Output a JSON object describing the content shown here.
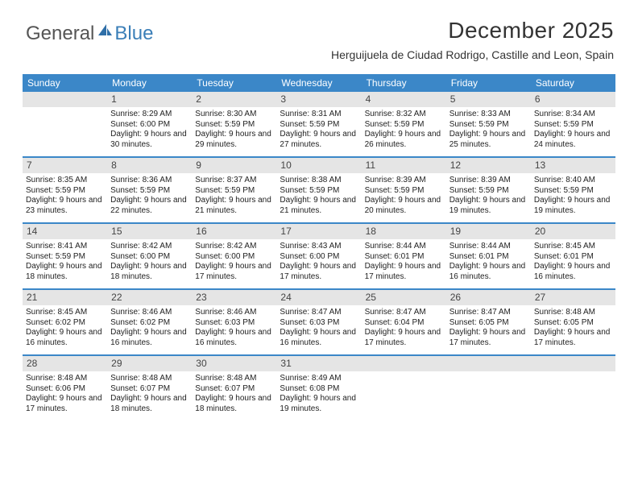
{
  "logo": {
    "text1": "General",
    "text2": "Blue"
  },
  "title": "December 2025",
  "location": "Herguijuela de Ciudad Rodrigo, Castille and Leon, Spain",
  "colors": {
    "header_bg": "#3b87c8",
    "header_text": "#ffffff",
    "daynum_bg": "#e5e5e5",
    "row_border": "#3b87c8",
    "body_text": "#222222"
  },
  "day_labels": [
    "Sunday",
    "Monday",
    "Tuesday",
    "Wednesday",
    "Thursday",
    "Friday",
    "Saturday"
  ],
  "first_weekday": 1,
  "days": [
    {
      "n": 1,
      "sr": "8:29 AM",
      "ss": "6:00 PM",
      "dl": "9 hours and 30 minutes."
    },
    {
      "n": 2,
      "sr": "8:30 AM",
      "ss": "5:59 PM",
      "dl": "9 hours and 29 minutes."
    },
    {
      "n": 3,
      "sr": "8:31 AM",
      "ss": "5:59 PM",
      "dl": "9 hours and 27 minutes."
    },
    {
      "n": 4,
      "sr": "8:32 AM",
      "ss": "5:59 PM",
      "dl": "9 hours and 26 minutes."
    },
    {
      "n": 5,
      "sr": "8:33 AM",
      "ss": "5:59 PM",
      "dl": "9 hours and 25 minutes."
    },
    {
      "n": 6,
      "sr": "8:34 AM",
      "ss": "5:59 PM",
      "dl": "9 hours and 24 minutes."
    },
    {
      "n": 7,
      "sr": "8:35 AM",
      "ss": "5:59 PM",
      "dl": "9 hours and 23 minutes."
    },
    {
      "n": 8,
      "sr": "8:36 AM",
      "ss": "5:59 PM",
      "dl": "9 hours and 22 minutes."
    },
    {
      "n": 9,
      "sr": "8:37 AM",
      "ss": "5:59 PM",
      "dl": "9 hours and 21 minutes."
    },
    {
      "n": 10,
      "sr": "8:38 AM",
      "ss": "5:59 PM",
      "dl": "9 hours and 21 minutes."
    },
    {
      "n": 11,
      "sr": "8:39 AM",
      "ss": "5:59 PM",
      "dl": "9 hours and 20 minutes."
    },
    {
      "n": 12,
      "sr": "8:39 AM",
      "ss": "5:59 PM",
      "dl": "9 hours and 19 minutes."
    },
    {
      "n": 13,
      "sr": "8:40 AM",
      "ss": "5:59 PM",
      "dl": "9 hours and 19 minutes."
    },
    {
      "n": 14,
      "sr": "8:41 AM",
      "ss": "5:59 PM",
      "dl": "9 hours and 18 minutes."
    },
    {
      "n": 15,
      "sr": "8:42 AM",
      "ss": "6:00 PM",
      "dl": "9 hours and 18 minutes."
    },
    {
      "n": 16,
      "sr": "8:42 AM",
      "ss": "6:00 PM",
      "dl": "9 hours and 17 minutes."
    },
    {
      "n": 17,
      "sr": "8:43 AM",
      "ss": "6:00 PM",
      "dl": "9 hours and 17 minutes."
    },
    {
      "n": 18,
      "sr": "8:44 AM",
      "ss": "6:01 PM",
      "dl": "9 hours and 17 minutes."
    },
    {
      "n": 19,
      "sr": "8:44 AM",
      "ss": "6:01 PM",
      "dl": "9 hours and 16 minutes."
    },
    {
      "n": 20,
      "sr": "8:45 AM",
      "ss": "6:01 PM",
      "dl": "9 hours and 16 minutes."
    },
    {
      "n": 21,
      "sr": "8:45 AM",
      "ss": "6:02 PM",
      "dl": "9 hours and 16 minutes."
    },
    {
      "n": 22,
      "sr": "8:46 AM",
      "ss": "6:02 PM",
      "dl": "9 hours and 16 minutes."
    },
    {
      "n": 23,
      "sr": "8:46 AM",
      "ss": "6:03 PM",
      "dl": "9 hours and 16 minutes."
    },
    {
      "n": 24,
      "sr": "8:47 AM",
      "ss": "6:03 PM",
      "dl": "9 hours and 16 minutes."
    },
    {
      "n": 25,
      "sr": "8:47 AM",
      "ss": "6:04 PM",
      "dl": "9 hours and 17 minutes."
    },
    {
      "n": 26,
      "sr": "8:47 AM",
      "ss": "6:05 PM",
      "dl": "9 hours and 17 minutes."
    },
    {
      "n": 27,
      "sr": "8:48 AM",
      "ss": "6:05 PM",
      "dl": "9 hours and 17 minutes."
    },
    {
      "n": 28,
      "sr": "8:48 AM",
      "ss": "6:06 PM",
      "dl": "9 hours and 17 minutes."
    },
    {
      "n": 29,
      "sr": "8:48 AM",
      "ss": "6:07 PM",
      "dl": "9 hours and 18 minutes."
    },
    {
      "n": 30,
      "sr": "8:48 AM",
      "ss": "6:07 PM",
      "dl": "9 hours and 18 minutes."
    },
    {
      "n": 31,
      "sr": "8:49 AM",
      "ss": "6:08 PM",
      "dl": "9 hours and 19 minutes."
    }
  ],
  "labels": {
    "sunrise": "Sunrise:",
    "sunset": "Sunset:",
    "daylight": "Daylight:"
  }
}
